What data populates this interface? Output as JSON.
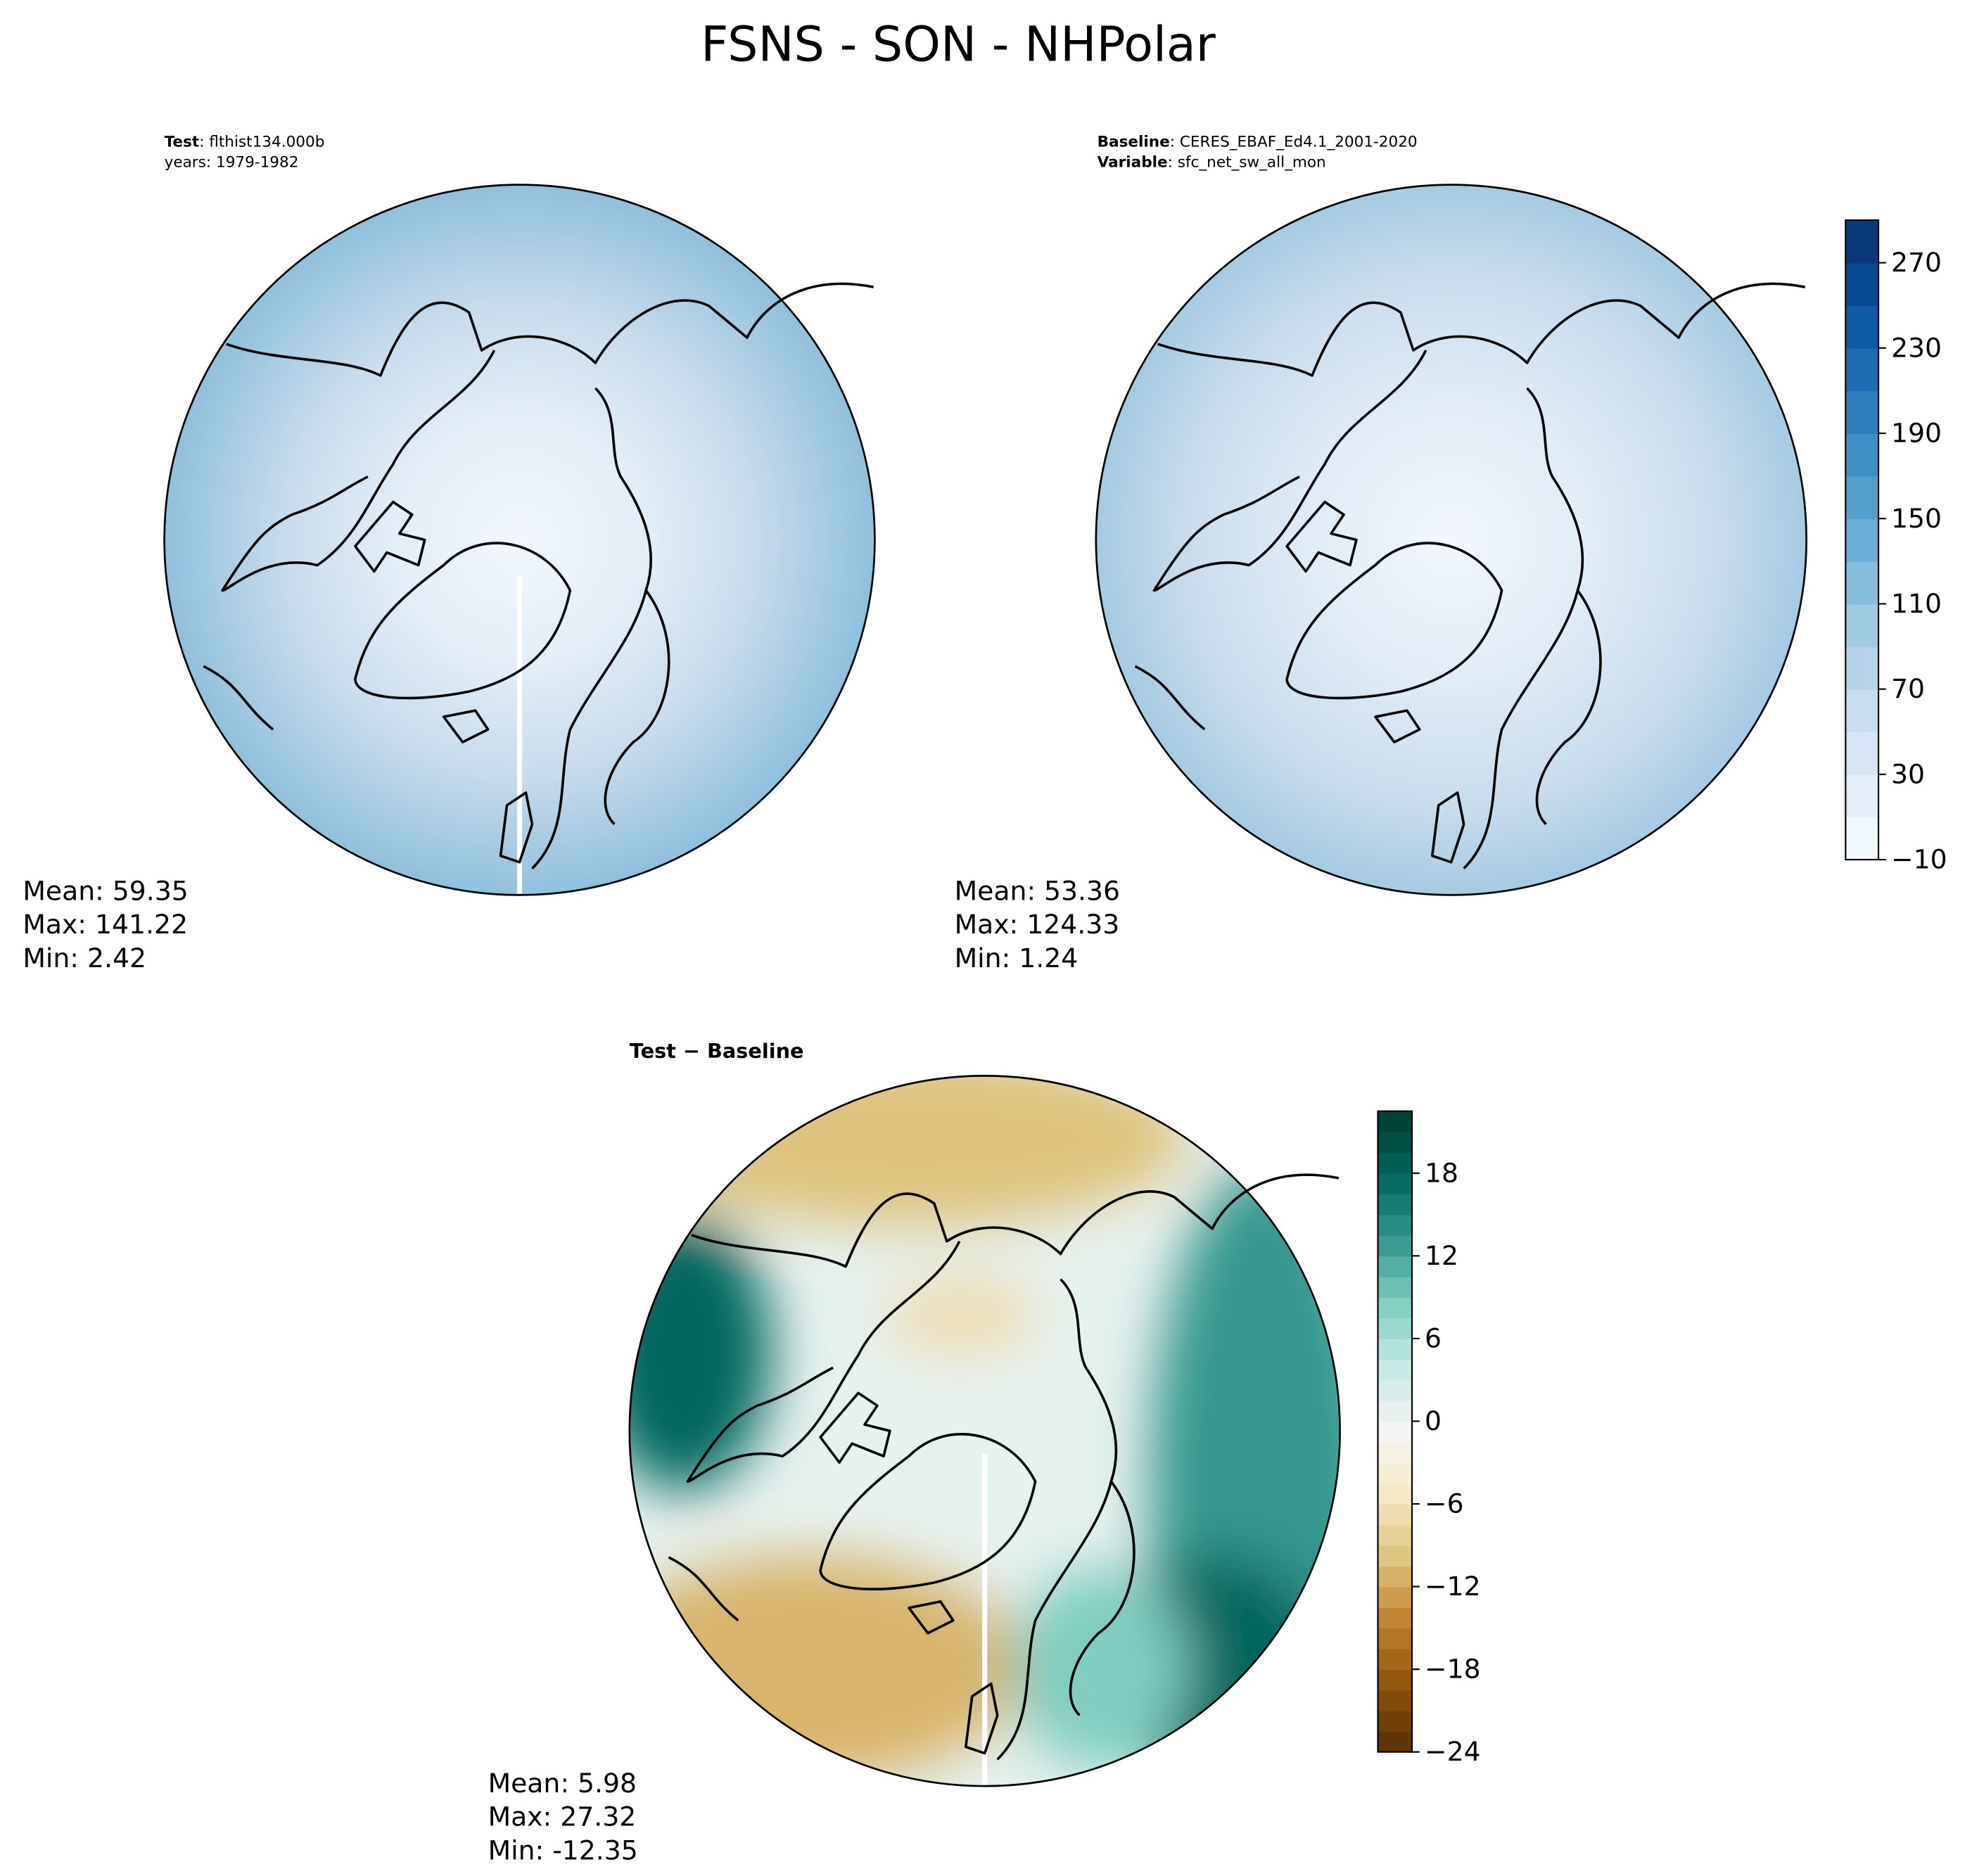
{
  "title": "FSNS - SON - NHPolar",
  "panels": [
    {
      "label": {
        "name": "Test",
        "text": ": flthist134.000b",
        "line2": "years: 1979-1982"
      },
      "stats": [
        "Mean: 59.35",
        "Max: 141.22",
        "Min:  2.42"
      ]
    },
    {
      "label": {
        "name": "Baseline",
        "text": ": CERES_EBAF_Ed4.1_2001-2020",
        "line2_name": "Variable",
        "line2": ": sfc_net_sw_all_mon"
      },
      "stats": [
        "Mean: 53.36",
        "Max: 124.33",
        "Min:  1.24"
      ]
    },
    {
      "label": {
        "name": "Test − Baseline"
      },
      "stats": [
        "Mean:  5.98",
        "Max: 27.32",
        "Min: -12.35"
      ]
    }
  ],
  "colorbars": [
    {
      "ylim": [
        -10,
        290
      ],
      "bands": 15,
      "colors": [
        "#f7fbff",
        "#deebf7",
        "#c6dbef",
        "#9ecae1",
        "#6baed6",
        "#4292c6",
        "#2171b5",
        "#08519c",
        "#08306b"
      ],
      "yticks": [
        {
          "value": -10,
          "label": "−10"
        },
        30,
        70,
        110,
        150,
        190,
        230,
        270
      ]
    },
    {
      "ylim": [
        -24,
        22.5
      ],
      "bands": 31,
      "colors": [
        "#543005",
        "#8c510a",
        "#bf812d",
        "#dfc27d",
        "#f6e8c3",
        "#f5f5f5",
        "#c7eae5",
        "#80cdc1",
        "#35978f",
        "#01665e",
        "#003c30"
      ],
      "yticks": [
        {
          "value": -24,
          "label": "−24"
        },
        {
          "value": -18,
          "label": "−18"
        },
        {
          "value": -12,
          "label": "−12"
        },
        {
          "value": -6,
          "label": "−6"
        },
        0,
        6,
        12,
        18
      ]
    }
  ]
}
